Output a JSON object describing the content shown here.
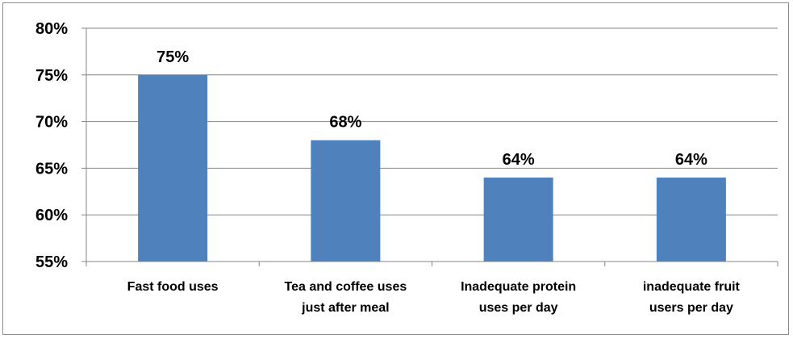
{
  "chart_data": {
    "type": "bar",
    "categories": [
      [
        "Fast food uses"
      ],
      [
        "Tea and coffee uses",
        "just after meal"
      ],
      [
        "Inadequate protein",
        "uses per day"
      ],
      [
        "inadequate fruit",
        "users per day"
      ]
    ],
    "values": [
      75,
      68,
      64,
      64
    ],
    "data_labels": [
      "75%",
      "68%",
      "64%",
      "64%"
    ],
    "ylim": [
      55,
      80
    ],
    "yticks": [
      55,
      60,
      65,
      70,
      75,
      80
    ],
    "ytick_labels": [
      "55%",
      "60%",
      "65%",
      "70%",
      "75%",
      "80%"
    ],
    "title": "",
    "xlabel": "",
    "ylabel": "",
    "grid": true,
    "legend": "none",
    "bar_color": "#4F81BD",
    "grid_color": "#868686"
  }
}
